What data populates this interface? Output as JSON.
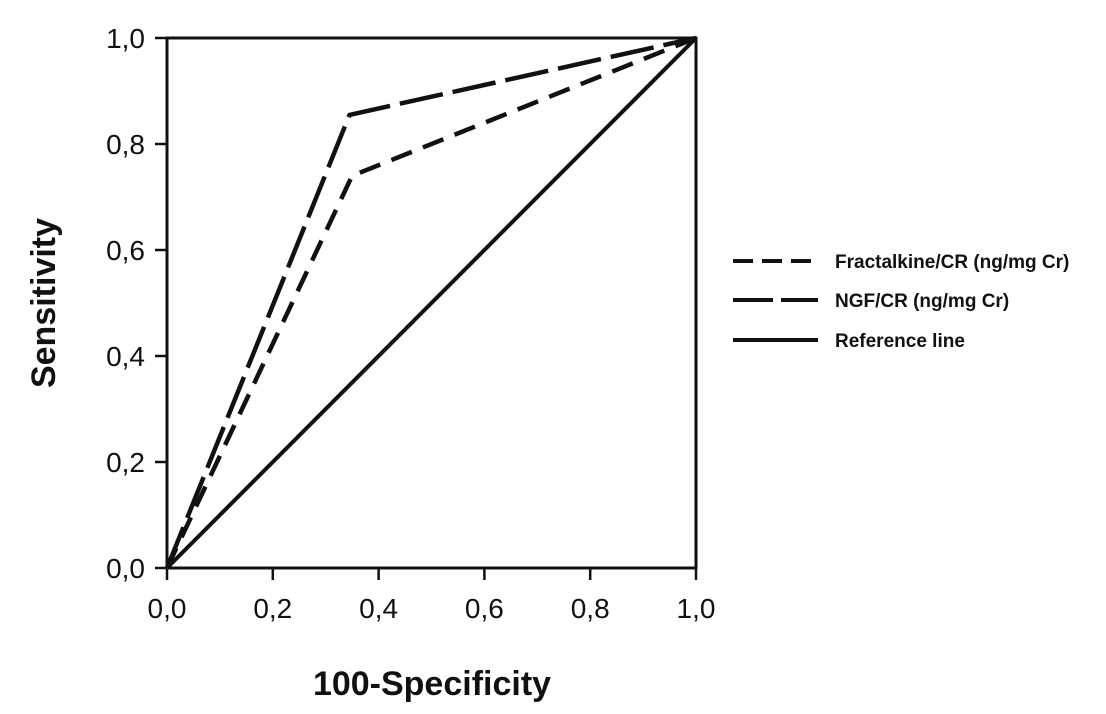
{
  "chart_data": {
    "type": "line",
    "title": "",
    "xlabel": "100-Specificity",
    "ylabel": "Sensitivity",
    "xlim": [
      0,
      1
    ],
    "ylim": [
      0,
      1
    ],
    "x_ticks": [
      0,
      0.2,
      0.4,
      0.6,
      0.8,
      1
    ],
    "y_ticks": [
      0,
      0.2,
      0.4,
      0.6,
      0.8,
      1
    ],
    "x_tick_labels": [
      "0,0",
      "0,2",
      "0,4",
      "0,6",
      "0,8",
      "1,0"
    ],
    "y_tick_labels": [
      "0,0",
      "0,2",
      "0,4",
      "0,6",
      "0,8",
      "1,0"
    ],
    "grid": false,
    "legend_position": "right",
    "series": [
      {
        "name": "Fractalkine/CR (ng/mg Cr)",
        "line_style": "short-dash",
        "color": "#111111",
        "points": [
          [
            0,
            0
          ],
          [
            0.35,
            0.74
          ],
          [
            1,
            1
          ]
        ]
      },
      {
        "name": "NGF/CR (ng/mg Cr)",
        "line_style": "long-dash",
        "color": "#111111",
        "points": [
          [
            0,
            0
          ],
          [
            0.345,
            0.855
          ],
          [
            1,
            1
          ]
        ]
      },
      {
        "name": "Reference line",
        "line_style": "solid",
        "color": "#111111",
        "points": [
          [
            0,
            0
          ],
          [
            1,
            1
          ]
        ]
      }
    ]
  }
}
